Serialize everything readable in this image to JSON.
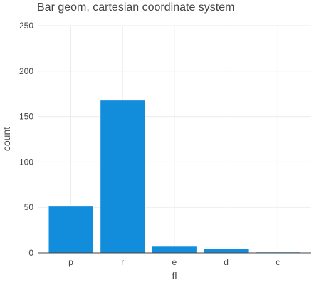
{
  "chart_data": {
    "type": "bar",
    "title": "Bar geom, cartesian coordinate system",
    "xlabel": "fl",
    "ylabel": "count",
    "categories": [
      "p",
      "r",
      "e",
      "d",
      "c"
    ],
    "values": [
      52,
      168,
      8,
      5,
      1
    ],
    "ylim": [
      0,
      250
    ],
    "yticks": [
      0,
      50,
      100,
      150,
      200,
      250
    ],
    "grid": true,
    "legend": "none",
    "bar_color": "#118DDB",
    "grid_color": "#EBEBEB",
    "baseline_color": "#444444",
    "text_color": "#444444"
  }
}
